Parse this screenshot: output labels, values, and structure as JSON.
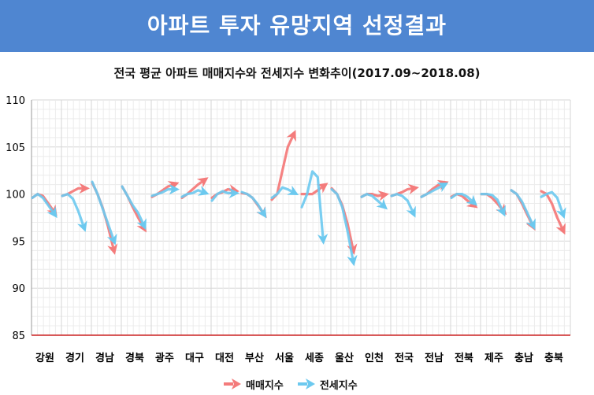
{
  "header": {
    "title": "아파트 투자 유망지역 선정결과"
  },
  "chart_data": {
    "type": "line",
    "title": "전국 평균 아파트 매매지수와 전세지수 변화추이(2017.09~2018.08)",
    "ylim": [
      85,
      110
    ],
    "yticks": [
      85,
      90,
      95,
      100,
      105,
      110
    ],
    "grid": true,
    "legend_position": "bottom",
    "categories": [
      "강원",
      "경기",
      "경남",
      "경북",
      "광주",
      "대구",
      "대전",
      "부산",
      "서울",
      "세종",
      "울산",
      "인천",
      "전국",
      "전남",
      "전북",
      "제주",
      "충남",
      "충북"
    ],
    "series": [
      {
        "name": "매매지수",
        "color": "#f47b7b",
        "values": [
          [
            99.6,
            100.0,
            99.8,
            99.0,
            98.2
          ],
          [
            99.8,
            100.0,
            100.3,
            100.6,
            100.6
          ],
          [
            101.2,
            100.0,
            98.5,
            96.5,
            94.2
          ],
          [
            100.8,
            99.8,
            98.6,
            97.5,
            96.5
          ],
          [
            99.7,
            100.0,
            100.4,
            100.8,
            101.0
          ],
          [
            99.6,
            100.0,
            100.5,
            101.0,
            101.4
          ],
          [
            99.6,
            100.0,
            100.2,
            100.5,
            100.4
          ],
          [
            100.1,
            100.0,
            99.6,
            98.8,
            98.0
          ],
          [
            99.4,
            100.0,
            102.5,
            105.0,
            106.2
          ],
          [
            100.0,
            100.0,
            100.0,
            100.4,
            100.8
          ],
          [
            100.6,
            100.0,
            98.8,
            96.8,
            94.2
          ],
          [
            99.7,
            100.0,
            100.0,
            99.8,
            99.9
          ],
          [
            99.8,
            100.0,
            100.2,
            100.5,
            100.6
          ],
          [
            99.7,
            100.0,
            100.5,
            100.9,
            101.1
          ],
          [
            99.7,
            100.0,
            99.8,
            99.3,
            98.9
          ],
          [
            100.0,
            100.0,
            99.6,
            99.0,
            98.3
          ],
          [
            100.4,
            100.0,
            99.0,
            97.8,
            96.7
          ],
          [
            100.3,
            100.0,
            99.0,
            97.5,
            96.3
          ]
        ]
      },
      {
        "name": "전세지수",
        "color": "#6cc9ef",
        "values": [
          [
            99.6,
            100.0,
            99.6,
            98.8,
            98.0
          ],
          [
            99.8,
            100.0,
            99.5,
            98.2,
            96.6
          ],
          [
            101.3,
            100.0,
            98.4,
            96.8,
            95.2
          ],
          [
            100.8,
            99.8,
            98.8,
            98.0,
            96.8
          ],
          [
            99.8,
            100.0,
            100.2,
            100.5,
            100.5
          ],
          [
            99.7,
            100.0,
            100.1,
            100.4,
            100.2
          ],
          [
            99.3,
            100.0,
            100.3,
            100.1,
            100.1
          ],
          [
            100.2,
            100.0,
            99.6,
            98.9,
            98.0
          ],
          [
            99.6,
            100.0,
            100.7,
            100.5,
            100.2
          ],
          [
            98.6,
            100.0,
            102.4,
            101.8,
            95.3
          ],
          [
            100.5,
            100.0,
            98.6,
            96.0,
            93.0
          ],
          [
            99.7,
            100.0,
            99.8,
            99.3,
            98.8
          ],
          [
            99.8,
            100.0,
            99.8,
            99.3,
            98.1
          ],
          [
            99.7,
            100.0,
            100.3,
            100.6,
            100.9
          ],
          [
            99.6,
            100.0,
            100.0,
            99.7,
            99.2
          ],
          [
            100.0,
            100.0,
            99.9,
            99.4,
            98.2
          ],
          [
            100.4,
            100.0,
            99.2,
            98.0,
            96.8
          ],
          [
            99.7,
            100.0,
            100.2,
            99.6,
            98.0
          ]
        ]
      }
    ]
  }
}
